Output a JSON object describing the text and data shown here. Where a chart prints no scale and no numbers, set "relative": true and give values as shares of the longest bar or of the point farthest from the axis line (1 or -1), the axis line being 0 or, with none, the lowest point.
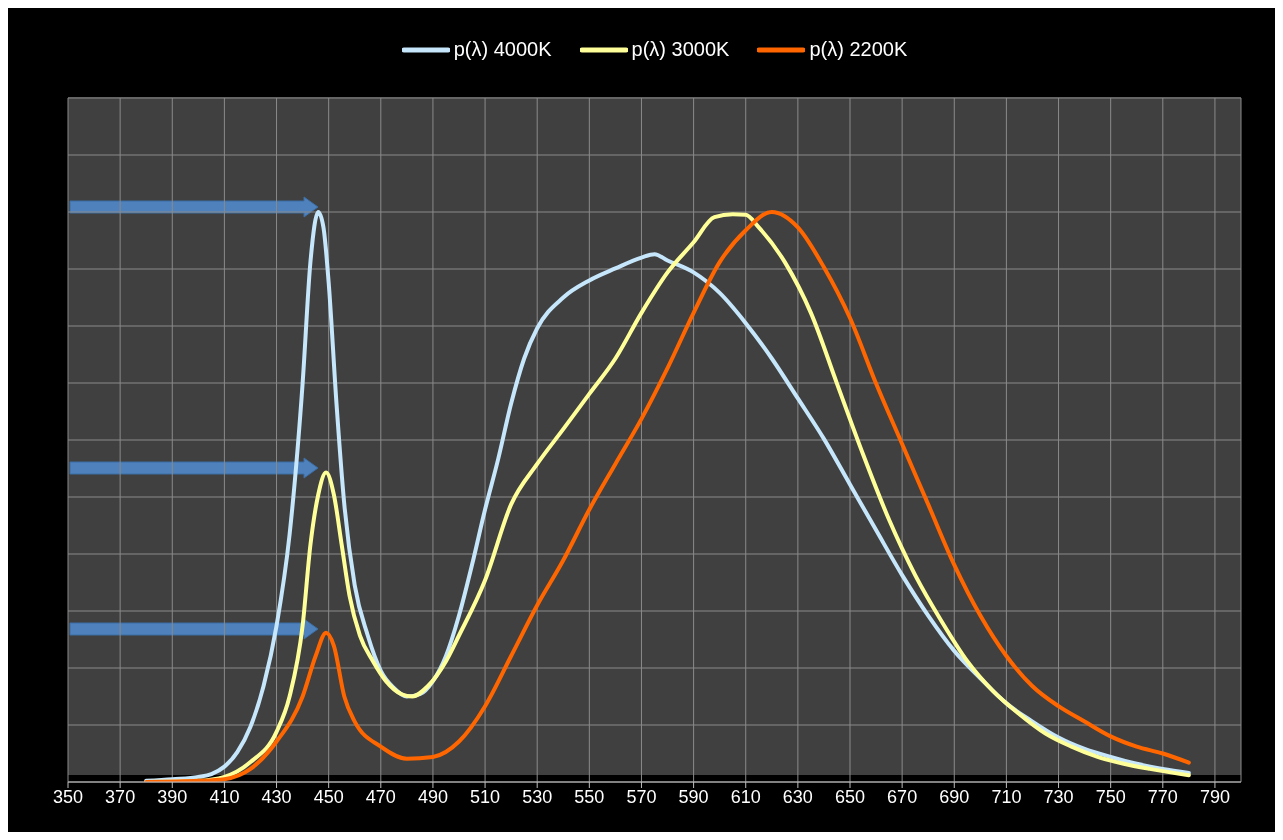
{
  "chart_data": {
    "type": "line",
    "relative": true,
    "xlim": [
      350,
      800
    ],
    "xticks": [
      350,
      370,
      390,
      410,
      430,
      450,
      470,
      490,
      510,
      530,
      550,
      570,
      590,
      610,
      630,
      650,
      670,
      690,
      710,
      730,
      750,
      770,
      790
    ],
    "grid": true,
    "legend": "top",
    "marker": "none",
    "line_style": "solid",
    "series": [
      {
        "name": "p(λ) 4000K",
        "color": "#c5e6fb",
        "x": [
          380,
          390,
          400,
          405,
          410,
          415,
          420,
          425,
          430,
          435,
          440,
          443,
          446,
          448,
          450,
          453,
          456,
          460,
          465,
          470,
          475,
          480,
          485,
          490,
          495,
          500,
          505,
          510,
          515,
          520,
          525,
          530,
          540,
          550,
          560,
          570,
          575,
          580,
          590,
          600,
          610,
          620,
          630,
          640,
          650,
          660,
          670,
          680,
          690,
          700,
          710,
          720,
          730,
          740,
          750,
          760,
          770,
          780
        ],
        "values": [
          0.002,
          0.005,
          0.009,
          0.014,
          0.027,
          0.053,
          0.097,
          0.168,
          0.274,
          0.434,
          0.699,
          0.912,
          1.0,
          0.973,
          0.876,
          0.664,
          0.487,
          0.345,
          0.257,
          0.195,
          0.165,
          0.15,
          0.154,
          0.177,
          0.221,
          0.292,
          0.381,
          0.478,
          0.566,
          0.664,
          0.743,
          0.796,
          0.85,
          0.88,
          0.901,
          0.92,
          0.926,
          0.915,
          0.894,
          0.858,
          0.805,
          0.743,
          0.673,
          0.602,
          0.522,
          0.442,
          0.363,
          0.292,
          0.23,
          0.182,
          0.138,
          0.106,
          0.078,
          0.058,
          0.044,
          0.032,
          0.023,
          0.016
        ]
      },
      {
        "name": "p(λ) 3000K",
        "color": "#ffff99",
        "x": [
          380,
          400,
          410,
          420,
          430,
          435,
          440,
          443,
          446,
          449,
          452,
          455,
          458,
          462,
          467,
          472,
          478,
          482,
          488,
          495,
          500,
          510,
          520,
          530,
          540,
          550,
          560,
          570,
          580,
          590,
          598,
          605,
          610,
          615,
          625,
          635,
          645,
          655,
          665,
          675,
          685,
          695,
          705,
          715,
          725,
          735,
          745,
          755,
          765,
          780
        ],
        "values": [
          0,
          0.002,
          0.009,
          0.035,
          0.088,
          0.15,
          0.274,
          0.416,
          0.504,
          0.543,
          0.504,
          0.416,
          0.327,
          0.257,
          0.212,
          0.177,
          0.154,
          0.15,
          0.168,
          0.212,
          0.257,
          0.354,
          0.487,
          0.558,
          0.619,
          0.681,
          0.743,
          0.823,
          0.894,
          0.947,
          0.991,
          0.996,
          0.995,
          0.973,
          0.912,
          0.823,
          0.699,
          0.575,
          0.46,
          0.363,
          0.283,
          0.212,
          0.159,
          0.119,
          0.085,
          0.062,
          0.044,
          0.032,
          0.023,
          0.012
        ]
      },
      {
        "name": "p(λ) 2200K",
        "color": "#ff6600",
        "x": [
          380,
          400,
          410,
          420,
          430,
          440,
          445,
          449,
          452,
          456,
          460,
          470,
          480,
          490,
          500,
          510,
          520,
          530,
          540,
          550,
          560,
          570,
          580,
          590,
          600,
          610,
          620,
          630,
          640,
          650,
          660,
          670,
          680,
          690,
          700,
          710,
          720,
          730,
          740,
          750,
          760,
          770,
          780
        ],
        "values": [
          0,
          0.002,
          0.005,
          0.023,
          0.071,
          0.15,
          0.221,
          0.262,
          0.239,
          0.15,
          0.106,
          0.062,
          0.041,
          0.044,
          0.071,
          0.133,
          0.221,
          0.31,
          0.389,
          0.478,
          0.558,
          0.637,
          0.726,
          0.823,
          0.912,
          0.968,
          1.0,
          0.973,
          0.903,
          0.814,
          0.699,
          0.593,
          0.487,
          0.381,
          0.292,
          0.221,
          0.168,
          0.133,
          0.106,
          0.08,
          0.062,
          0.05,
          0.034
        ]
      }
    ]
  }
}
